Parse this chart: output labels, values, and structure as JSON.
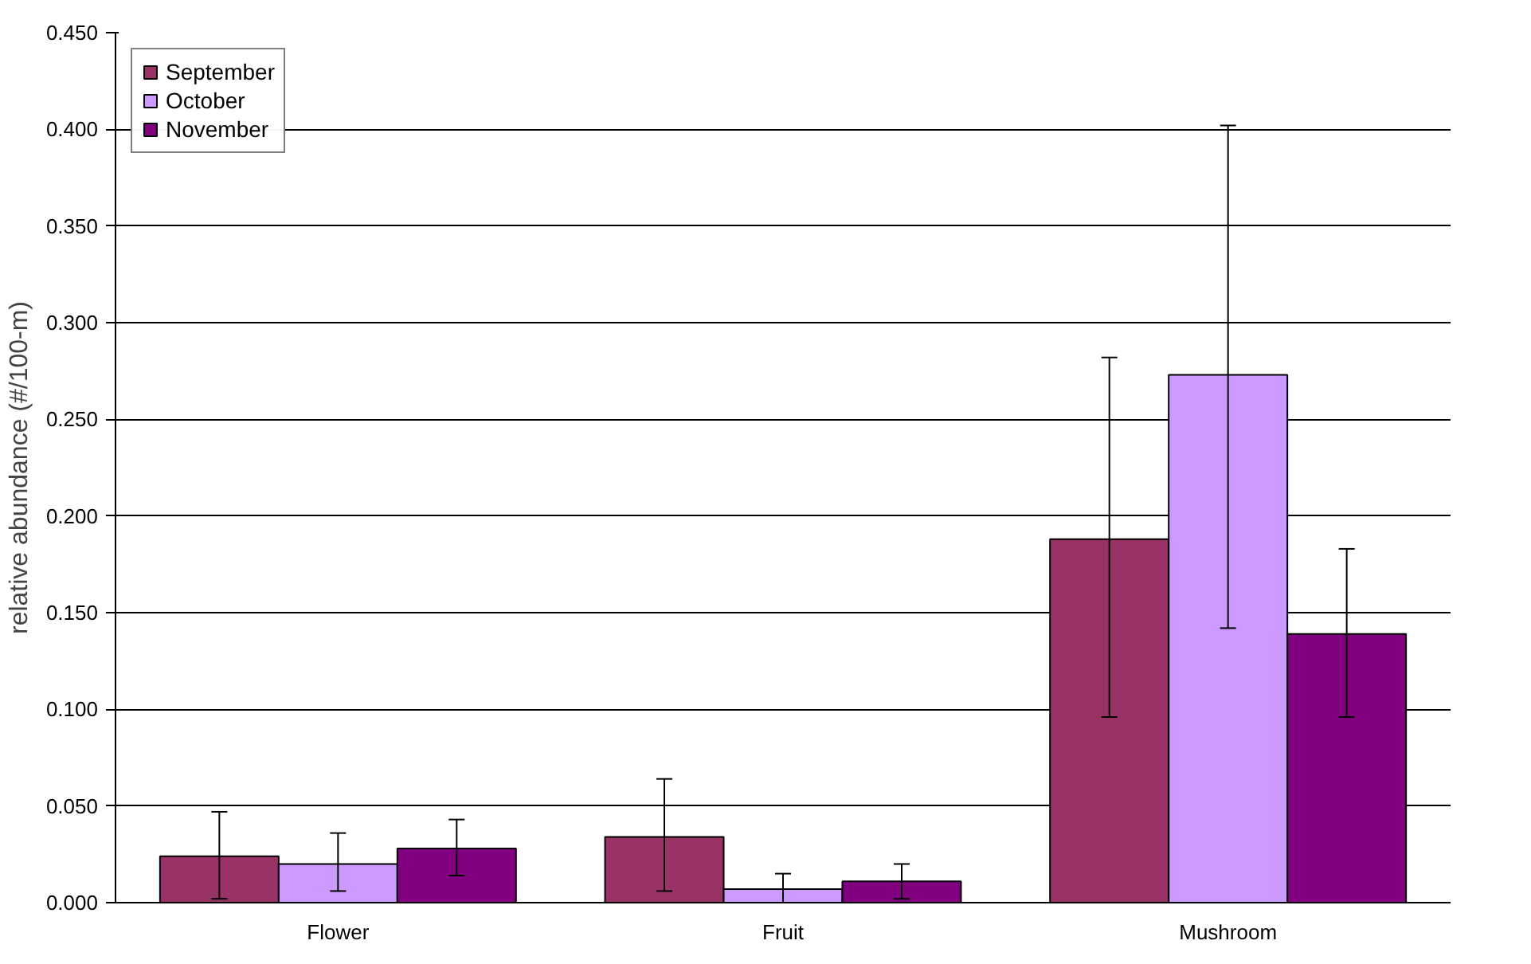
{
  "chart_data": {
    "type": "bar",
    "ylabel": "relative abundance (#/100-m)",
    "categories": [
      "Flower",
      "Fruit",
      "Mushroom"
    ],
    "series": [
      {
        "name": "September",
        "color": "#993366",
        "values": [
          0.024,
          0.034,
          0.188
        ],
        "errors": [
          [
            0.002,
            0.047
          ],
          [
            0.006,
            0.064
          ],
          [
            0.096,
            0.282
          ]
        ]
      },
      {
        "name": "October",
        "color": "#cc99ff",
        "values": [
          0.02,
          0.007,
          0.273
        ],
        "errors": [
          [
            0.006,
            0.036
          ],
          [
            0.0,
            0.015
          ],
          [
            0.142,
            0.402
          ]
        ]
      },
      {
        "name": "November",
        "color": "#800080",
        "values": [
          0.028,
          0.011,
          0.139
        ],
        "errors": [
          [
            0.014,
            0.043
          ],
          [
            0.002,
            0.02
          ],
          [
            0.096,
            0.183
          ]
        ]
      }
    ],
    "ylim": [
      0,
      0.45
    ],
    "yticks": [
      {
        "value": 0,
        "label": "0.000"
      },
      {
        "value": 0.05,
        "label": "0.050"
      },
      {
        "value": 0.1,
        "label": "0.100"
      },
      {
        "value": 0.15,
        "label": "0.150"
      },
      {
        "value": 0.2,
        "label": "0.200"
      },
      {
        "value": 0.25,
        "label": "0.250"
      },
      {
        "value": 0.3,
        "label": "0.300"
      },
      {
        "value": 0.35,
        "label": "0.350"
      },
      {
        "value": 0.4,
        "label": "0.400"
      },
      {
        "value": 0.45,
        "label": "0.450"
      }
    ],
    "grid": "y",
    "legend": "top left"
  }
}
